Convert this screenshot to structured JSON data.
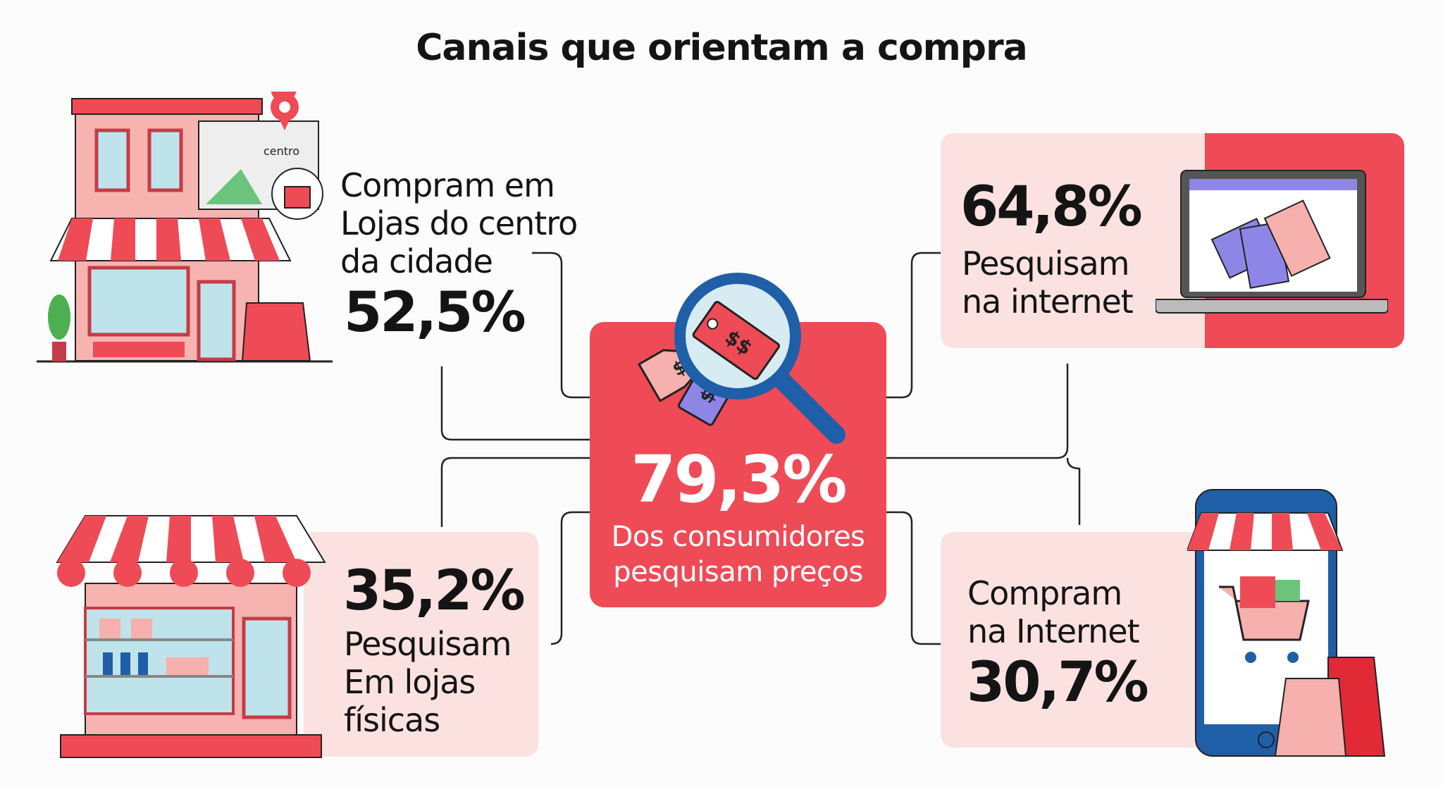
{
  "title": "Canais que orientam a compra",
  "center": {
    "value": "79,3%",
    "label_line1": "Dos consumidores",
    "label_line2": "pesquisam preços"
  },
  "top_left": {
    "lines": [
      "Compram em",
      "Lojas do centro",
      "da cidade"
    ],
    "value": "52,5%",
    "map_label": "centro"
  },
  "top_right": {
    "value": "64,8%",
    "lines": [
      "Pesquisam",
      "na internet"
    ]
  },
  "bottom_left": {
    "value": "35,2%",
    "lines": [
      "Pesquisam",
      "Em lojas",
      "físicas"
    ]
  },
  "bottom_right": {
    "lines": [
      "Compram",
      "na Internet"
    ],
    "value": "30,7%"
  },
  "tag_text": "$$",
  "colors": {
    "accent": "#ee4b57",
    "light": "#fbe2e0",
    "blue": "#1f5fa8",
    "purple": "#8e86e6"
  }
}
